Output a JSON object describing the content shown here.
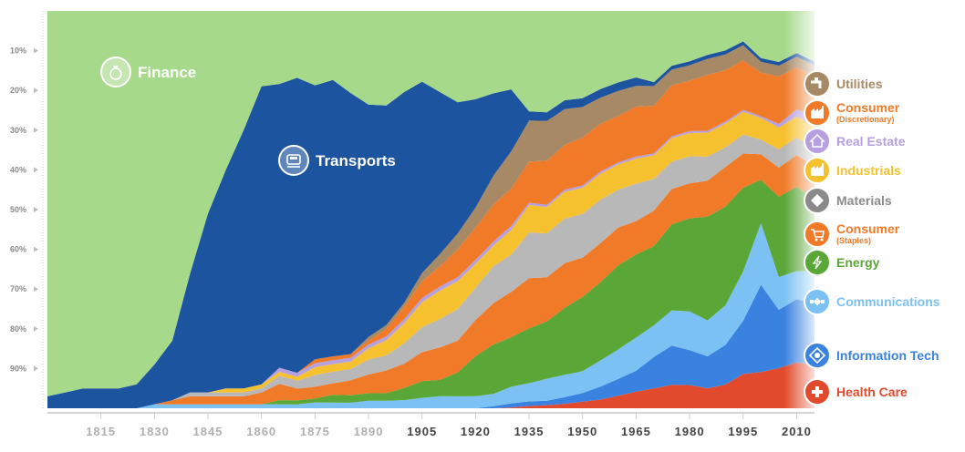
{
  "chart_data": {
    "type": "area",
    "stacking": "percent",
    "x": [
      1800,
      1805,
      1810,
      1815,
      1820,
      1825,
      1830,
      1835,
      1840,
      1845,
      1850,
      1855,
      1860,
      1865,
      1870,
      1875,
      1880,
      1885,
      1890,
      1895,
      1900,
      1905,
      1910,
      1915,
      1920,
      1925,
      1930,
      1935,
      1940,
      1945,
      1950,
      1955,
      1960,
      1965,
      1970,
      1975,
      1980,
      1985,
      1990,
      1995,
      2000,
      2005,
      2010,
      2015
    ],
    "xticks": [
      "1815",
      "1830",
      "1845",
      "1860",
      "1875",
      "1890",
      "1905",
      "1920",
      "1935",
      "1950",
      "1965",
      "1980",
      "1995",
      "2010"
    ],
    "yticks": [
      "10%",
      "20%",
      "30%",
      "40%",
      "50%",
      "60%",
      "70%",
      "80%",
      "90%"
    ],
    "ylim": [
      0,
      100
    ],
    "series": [
      {
        "name": "Health Care",
        "color": "#e24a2d",
        "values": [
          0,
          0,
          0,
          0,
          0,
          0,
          0,
          0,
          0,
          0,
          0,
          0,
          0,
          0,
          0,
          0,
          0,
          0,
          0,
          0,
          0,
          0,
          0,
          0,
          0,
          0,
          0.2,
          0.5,
          0.7,
          1,
          1.5,
          2,
          3,
          4,
          5,
          6,
          6,
          5,
          6,
          9,
          10,
          11,
          13,
          12
        ]
      },
      {
        "name": "Information Tech",
        "color": "#3a82e0",
        "values": [
          0,
          0,
          0,
          0,
          0,
          0,
          0,
          0,
          0,
          0,
          0,
          0,
          0,
          0,
          0,
          0,
          0,
          0,
          0,
          0,
          0,
          0,
          0,
          0,
          0,
          0.5,
          1,
          1,
          1,
          1.5,
          2,
          3,
          4,
          5,
          8,
          10,
          9,
          8,
          10,
          14,
          24,
          16,
          18,
          17
        ]
      },
      {
        "name": "Communications",
        "color": "#7cc1f4",
        "values": [
          0,
          0,
          0,
          0,
          0,
          0,
          1,
          1,
          1,
          1,
          1,
          1,
          1,
          1,
          1,
          1.5,
          1.5,
          1.5,
          2,
          2,
          2,
          2.5,
          3,
          3,
          3,
          3,
          4,
          4,
          5,
          5,
          5,
          6,
          7,
          8,
          8,
          9,
          10,
          9,
          10,
          13,
          17,
          9,
          8,
          9
        ]
      },
      {
        "name": "Energy",
        "color": "#5aa637",
        "values": [
          0,
          0,
          0,
          0,
          0,
          0,
          0,
          0,
          0,
          0,
          0,
          0,
          0,
          1,
          1,
          1,
          2,
          2,
          2,
          2,
          3,
          4,
          4,
          6,
          10,
          12,
          12,
          12,
          13,
          15,
          17,
          18,
          20,
          20,
          20,
          22,
          24,
          26,
          25,
          22,
          12,
          22,
          24,
          20
        ]
      },
      {
        "name": "Consumer (Staples)",
        "color": "#f07a28",
        "values": [
          0,
          0,
          0,
          0,
          0,
          0,
          0,
          1,
          2,
          2,
          2,
          2,
          3,
          4,
          3,
          3,
          3,
          4,
          5,
          6,
          6,
          7,
          8,
          8,
          9,
          10,
          11,
          11,
          10,
          10,
          9,
          9,
          9,
          8,
          9,
          9,
          9,
          9,
          10,
          9,
          7,
          8,
          9,
          9
        ]
      },
      {
        "name": "Materials",
        "color": "#b8b8b8",
        "values": [
          0,
          0,
          0,
          0,
          0,
          0,
          0,
          0,
          1,
          1,
          1,
          1,
          1,
          2,
          2,
          3,
          3,
          3,
          4,
          4,
          5,
          6,
          7,
          8,
          8,
          9,
          9,
          10,
          10,
          10,
          10,
          10,
          9,
          9,
          8,
          7,
          7,
          6,
          5,
          5,
          4,
          5,
          5,
          5
        ]
      },
      {
        "name": "Industrials",
        "color": "#f6c12f",
        "values": [
          0,
          0,
          0,
          0,
          0,
          0,
          0,
          0,
          0,
          0,
          1,
          1,
          1,
          1,
          1,
          2,
          2,
          2,
          3,
          4,
          5,
          6,
          7,
          7,
          6,
          5,
          6,
          6,
          6,
          6,
          6,
          6,
          6,
          6,
          6,
          6,
          6,
          6,
          6,
          6,
          6,
          6,
          6,
          6
        ]
      },
      {
        "name": "Real Estate",
        "color": "#b6a0e0",
        "values": [
          0,
          0,
          0,
          0,
          0,
          0,
          0,
          0,
          0,
          0,
          0,
          0,
          0,
          1,
          1,
          1,
          1,
          1,
          1,
          1,
          1,
          1,
          1,
          1,
          1,
          1,
          1,
          0.5,
          0.5,
          0.5,
          0.5,
          0.5,
          0.5,
          0.5,
          0.5,
          0.5,
          0.5,
          0.5,
          0.5,
          0.5,
          0.5,
          1,
          2,
          3
        ]
      },
      {
        "name": "Consumer (Discretionary)",
        "color": "#f07a28",
        "values": [
          0,
          0,
          0,
          0,
          0,
          0,
          0,
          0,
          0,
          0,
          0,
          0,
          0,
          0,
          0,
          1,
          1,
          1,
          1,
          2,
          3,
          4,
          5,
          7,
          8,
          9,
          9,
          9,
          10,
          10,
          11,
          11,
          11,
          12,
          12,
          13,
          13,
          14,
          13,
          13,
          12,
          13,
          12,
          11
        ]
      },
      {
        "name": "Utilities",
        "color": "#a88965",
        "values": [
          0,
          0,
          0,
          0,
          0,
          0,
          0,
          0,
          0,
          0,
          0,
          0,
          0,
          0,
          0,
          0,
          0,
          0,
          1,
          1,
          1,
          2,
          3,
          4,
          5,
          7,
          9,
          9,
          9,
          8,
          7,
          6,
          6,
          5,
          5,
          4,
          4,
          4,
          4,
          4,
          3,
          3,
          3,
          3
        ]
      },
      {
        "name": "Transports",
        "color": "#1c54a0",
        "values": [
          3,
          4,
          5,
          5,
          5,
          6,
          10,
          15,
          30,
          45,
          55,
          65,
          75,
          70,
          75,
          70,
          72,
          70,
          62,
          58,
          52,
          46,
          40,
          33,
          27,
          20,
          15,
          2,
          2,
          2,
          2,
          2,
          2,
          2,
          1,
          1,
          1,
          1,
          1,
          1,
          1,
          1,
          1,
          1
        ]
      },
      {
        "name": "Finance",
        "color": "#a6d98a",
        "values": [
          97,
          96,
          95,
          95,
          95,
          94,
          89,
          83,
          66,
          51,
          40,
          30,
          19,
          18,
          17,
          19,
          18,
          22,
          25,
          25,
          20,
          17,
          20,
          23,
          22,
          20,
          19,
          22,
          23,
          20,
          20,
          18,
          17,
          16,
          18,
          14,
          13,
          11,
          10,
          8,
          13,
          14,
          12,
          14
        ]
      }
    ],
    "legend": [
      {
        "label": "Utilities",
        "sub": "",
        "color": "#a88965",
        "icon": "faucet-icon"
      },
      {
        "label": "Consumer",
        "sub": "(Discretionary)",
        "color": "#f07a28",
        "icon": "factory-icon"
      },
      {
        "label": "Real Estate",
        "sub": "",
        "color": "#b6a0e0",
        "icon": "house-icon"
      },
      {
        "label": "Industrials",
        "sub": "",
        "color": "#f6c12f",
        "icon": "factory-icon"
      },
      {
        "label": "Materials",
        "sub": "",
        "color": "#8a8a8a",
        "icon": "diamond-icon"
      },
      {
        "label": "Consumer",
        "sub": "(Staples)",
        "color": "#f07a28",
        "icon": "cart-icon"
      },
      {
        "label": "Energy",
        "sub": "",
        "color": "#5aa637",
        "icon": "bolt-icon"
      },
      {
        "label": "Communications",
        "sub": "",
        "color": "#7cc1f4",
        "icon": "satellite-icon"
      },
      {
        "label": "Information Tech",
        "sub": "",
        "color": "#3a82e0",
        "icon": "chip-icon"
      },
      {
        "label": "Health Care",
        "sub": "",
        "color": "#e24a2d",
        "icon": "plus-icon"
      }
    ],
    "inline_labels": [
      {
        "label": "Finance",
        "icon": "money-bag-icon"
      },
      {
        "label": "Transports",
        "icon": "train-icon"
      }
    ],
    "xtick_color_light": "#b0b0b0",
    "xtick_color_dark": "#444444",
    "xtick_dark_from": 1905
  }
}
